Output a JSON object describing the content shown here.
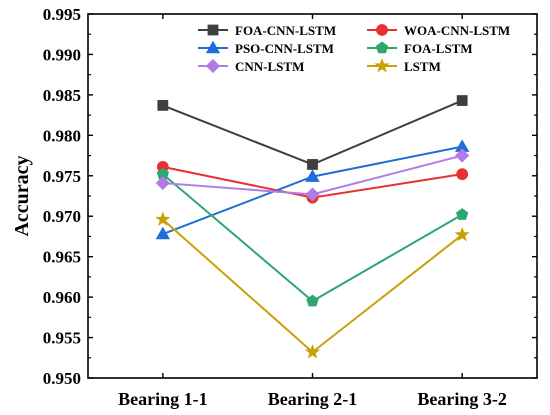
{
  "chart_data": {
    "type": "line",
    "title": "",
    "xlabel": "",
    "ylabel": "Accuracy",
    "categories": [
      "Bearing 1-1",
      "Bearing 2-1",
      "Bearing 3-2"
    ],
    "ylim": [
      0.95,
      0.995
    ],
    "yticks": [
      "0.950",
      "0.955",
      "0.960",
      "0.965",
      "0.970",
      "0.975",
      "0.980",
      "0.985",
      "0.990",
      "0.995"
    ],
    "legend_position": "top",
    "grid": false,
    "series": [
      {
        "name": "FOA-CNN-LSTM",
        "values": [
          0.9837,
          0.9764,
          0.9843
        ],
        "color": "#3f3f3f",
        "marker": "square"
      },
      {
        "name": "WOA-CNN-LSTM",
        "values": [
          0.9761,
          0.9723,
          0.9752
        ],
        "color": "#e8312f",
        "marker": "circle"
      },
      {
        "name": "PSO-CNN-LSTM",
        "values": [
          0.9678,
          0.9749,
          0.9786
        ],
        "color": "#1f6fd6",
        "marker": "triangle"
      },
      {
        "name": "FOA-LSTM",
        "values": [
          0.9752,
          0.9595,
          0.9702
        ],
        "color": "#2ea76f",
        "marker": "pentagon"
      },
      {
        "name": "CNN-LSTM",
        "values": [
          0.9741,
          0.9727,
          0.9775
        ],
        "color": "#b07be6",
        "marker": "diamond"
      },
      {
        "name": "LSTM",
        "values": [
          0.9696,
          0.9532,
          0.9677
        ],
        "color": "#c9a007",
        "marker": "star"
      }
    ]
  }
}
